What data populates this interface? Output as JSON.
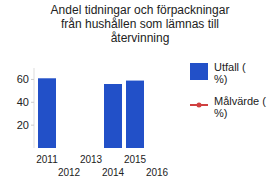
{
  "chart_data": {
    "type": "bar",
    "title": "Andel tidningar och förpackningar från hushållen som lämnas till återvinning",
    "categories": [
      "2011",
      "2012",
      "2013",
      "2014",
      "2015",
      "2016"
    ],
    "series": [
      {
        "name": "Utfall ( %)",
        "type": "bar",
        "color": "#2250c8",
        "values": [
          61,
          null,
          null,
          56,
          59,
          null
        ]
      },
      {
        "name": "Målvärde ( %)",
        "type": "line",
        "color": "#d04040",
        "marker": "circle",
        "values": [
          null,
          null,
          null,
          null,
          null,
          null
        ]
      }
    ],
    "ylim": [
      0,
      70
    ],
    "yticks": [
      20,
      40,
      60
    ],
    "grid": false,
    "legend": "right"
  }
}
